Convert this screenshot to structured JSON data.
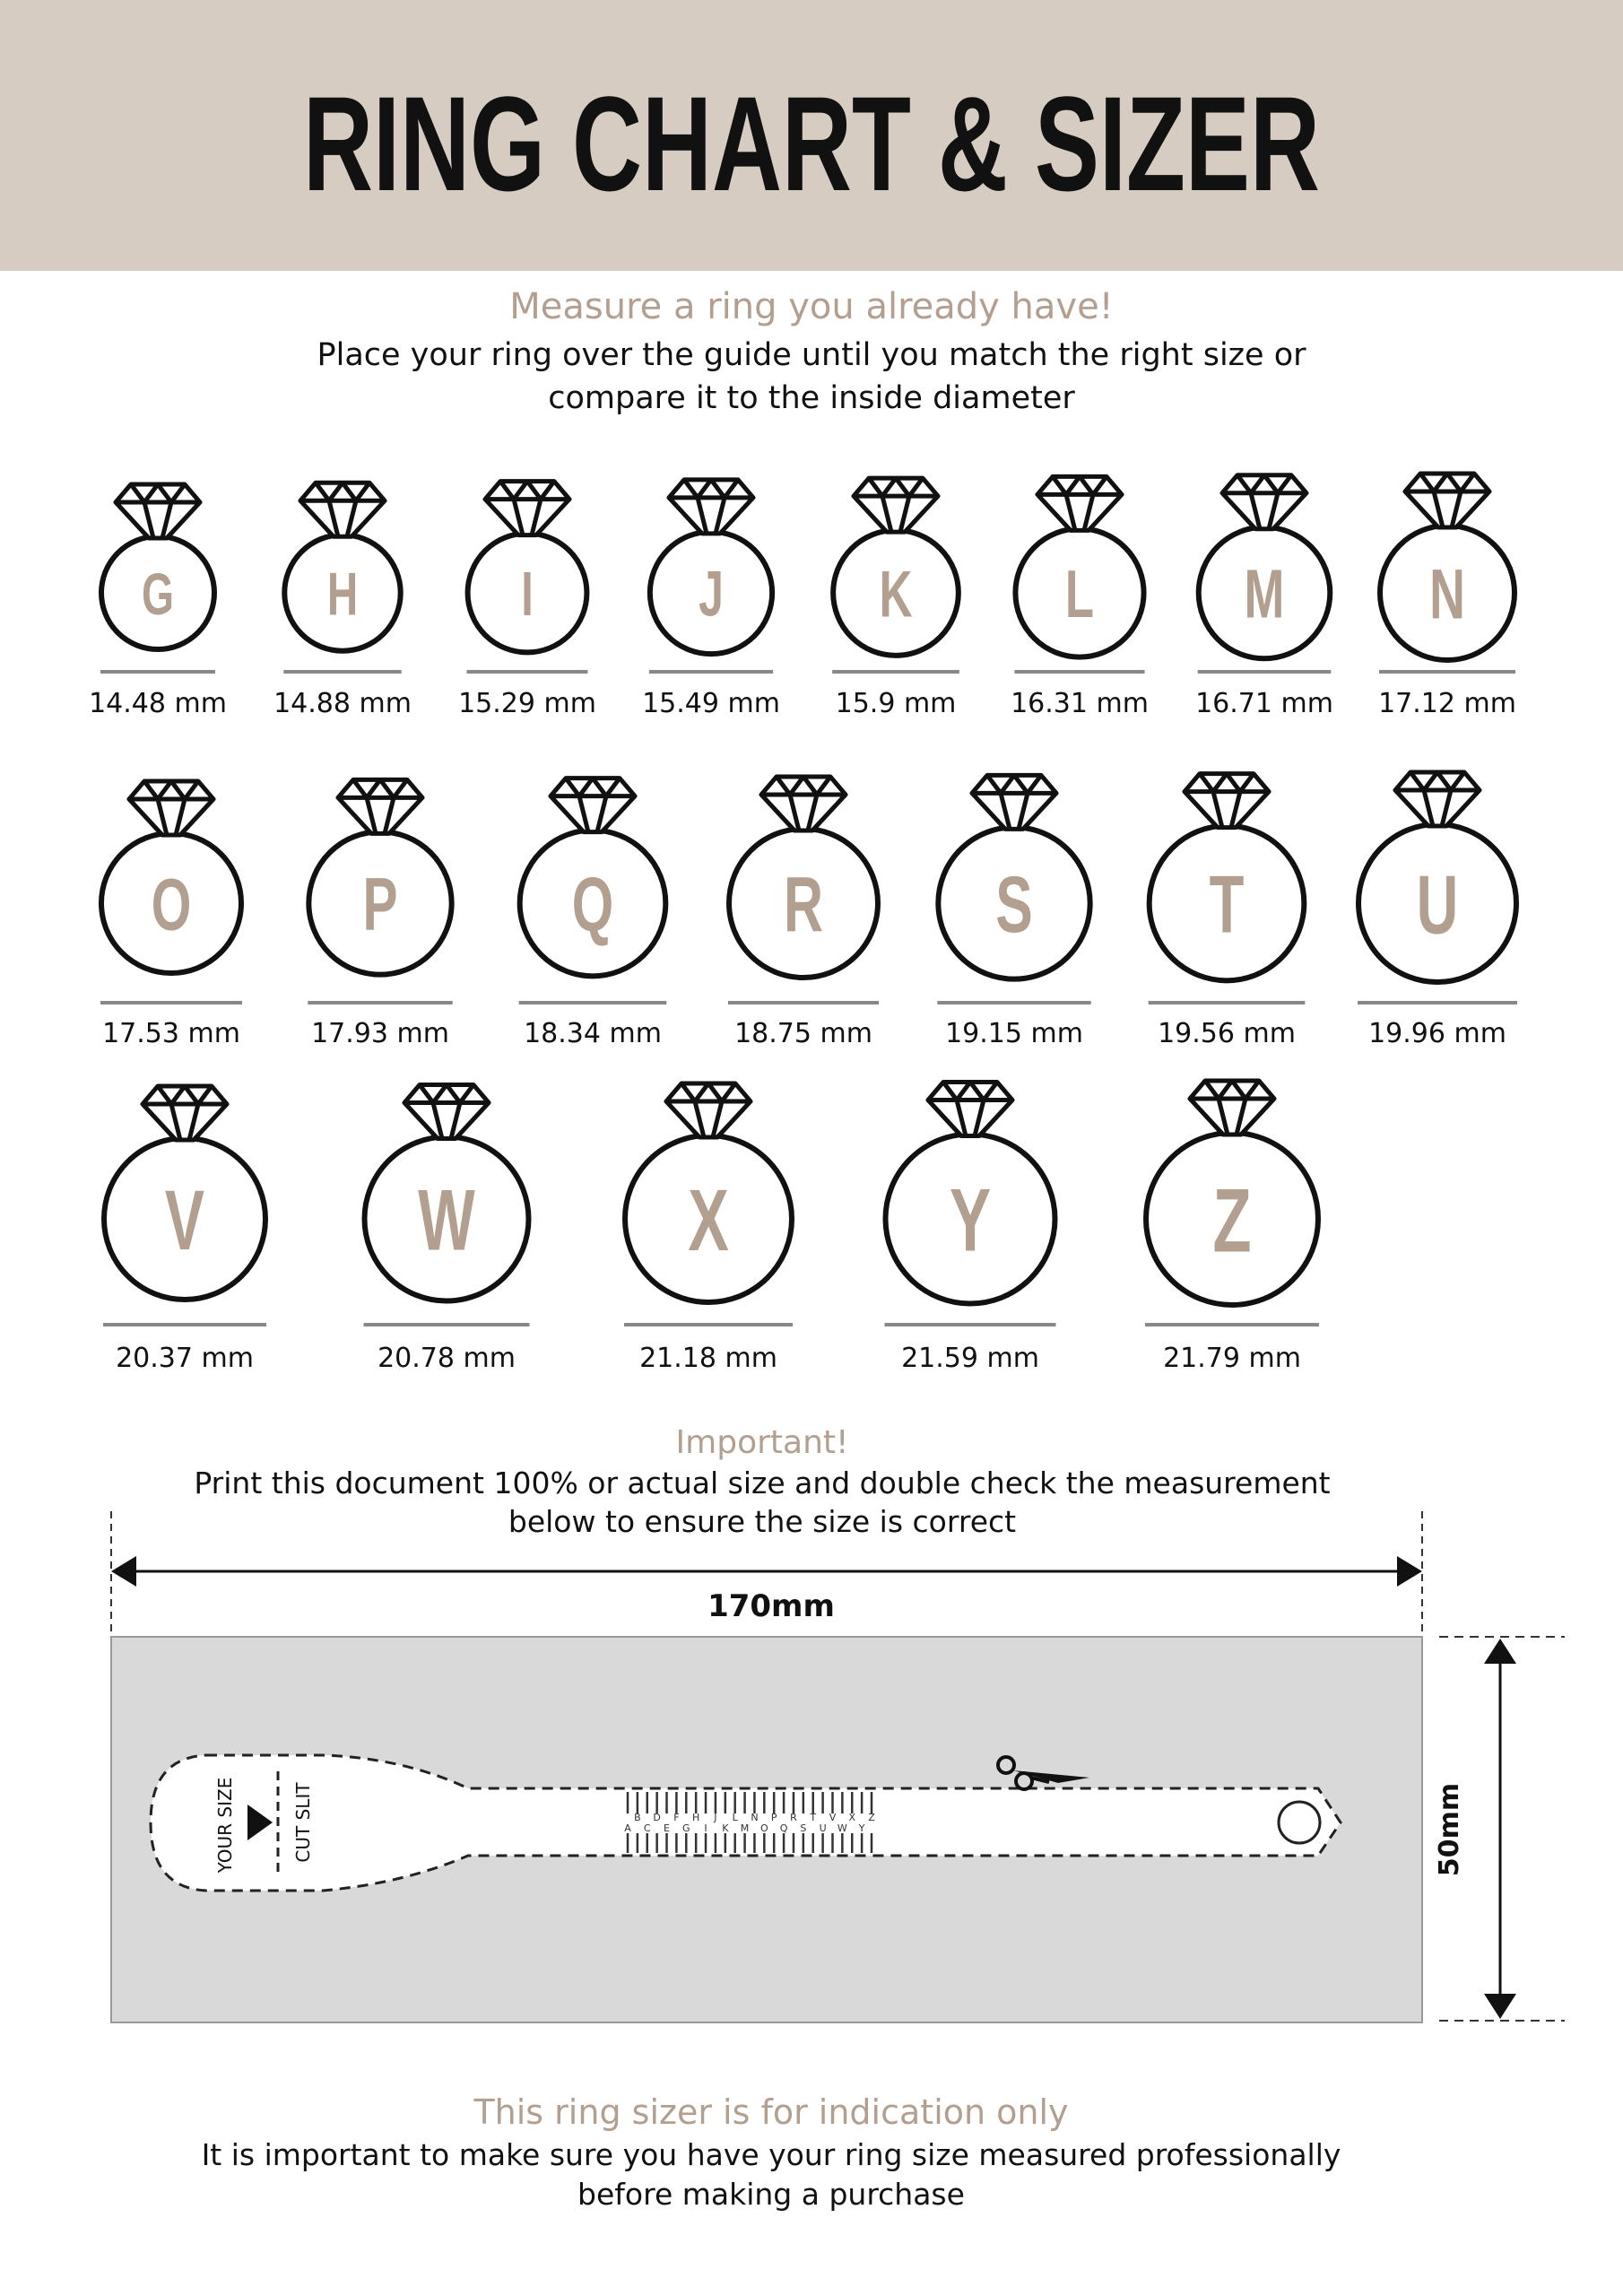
{
  "header": {
    "title": "RING CHART & SIZER",
    "background": "#d6ccc2"
  },
  "intro": {
    "heading": "Measure a ring you already have!",
    "line1": "Place your ring over the guide until you match the right size or",
    "line2": "compare it to the inside diameter"
  },
  "rings": [
    [
      {
        "letter": "G",
        "size": "14.48 mm"
      },
      {
        "letter": "H",
        "size": "14.88 mm"
      },
      {
        "letter": "I",
        "size": "15.29 mm"
      },
      {
        "letter": "J",
        "size": "15.49 mm"
      },
      {
        "letter": "K",
        "size": "15.9 mm"
      },
      {
        "letter": "L",
        "size": "16.31 mm"
      },
      {
        "letter": "M",
        "size": "16.71 mm"
      },
      {
        "letter": "N",
        "size": "17.12 mm"
      }
    ],
    [
      {
        "letter": "O",
        "size": "17.53 mm"
      },
      {
        "letter": "P",
        "size": "17.93 mm"
      },
      {
        "letter": "Q",
        "size": "18.34 mm"
      },
      {
        "letter": "R",
        "size": "18.75 mm"
      },
      {
        "letter": "S",
        "size": "19.15 mm"
      },
      {
        "letter": "T",
        "size": "19.56 mm"
      },
      {
        "letter": "U",
        "size": "19.96 mm"
      }
    ],
    [
      {
        "letter": "V",
        "size": "20.37 mm"
      },
      {
        "letter": "W",
        "size": "20.78 mm"
      },
      {
        "letter": "X",
        "size": "21.18 mm"
      },
      {
        "letter": "Y",
        "size": "21.59 mm"
      },
      {
        "letter": "Z",
        "size": "21.79 mm"
      }
    ]
  ],
  "important": {
    "heading": "Important!",
    "line1": "Print this document 100% or actual size and double check the measurement",
    "line2": "below to ensure the size is correct"
  },
  "sizer": {
    "width_label": "170mm",
    "height_label": "50mm",
    "your_size": "YOUR SIZE",
    "cut_slit": "CUT SLIT",
    "scale_letters": [
      "A",
      "B",
      "C",
      "D",
      "E",
      "F",
      "G",
      "H",
      "I",
      "J",
      "K",
      "L",
      "M",
      "N",
      "O",
      "P",
      "Q",
      "R",
      "S",
      "T",
      "U",
      "V",
      "W",
      "X",
      "Y",
      "Z"
    ],
    "background": "#d9d9d9"
  },
  "footer": {
    "heading": "This ring sizer is for indication only",
    "line1": "It is important to make sure you have your ring size measured professionally",
    "line2": "before making a purchase"
  },
  "colors": {
    "accent": "#b29f90",
    "header": "#d6ccc2"
  }
}
